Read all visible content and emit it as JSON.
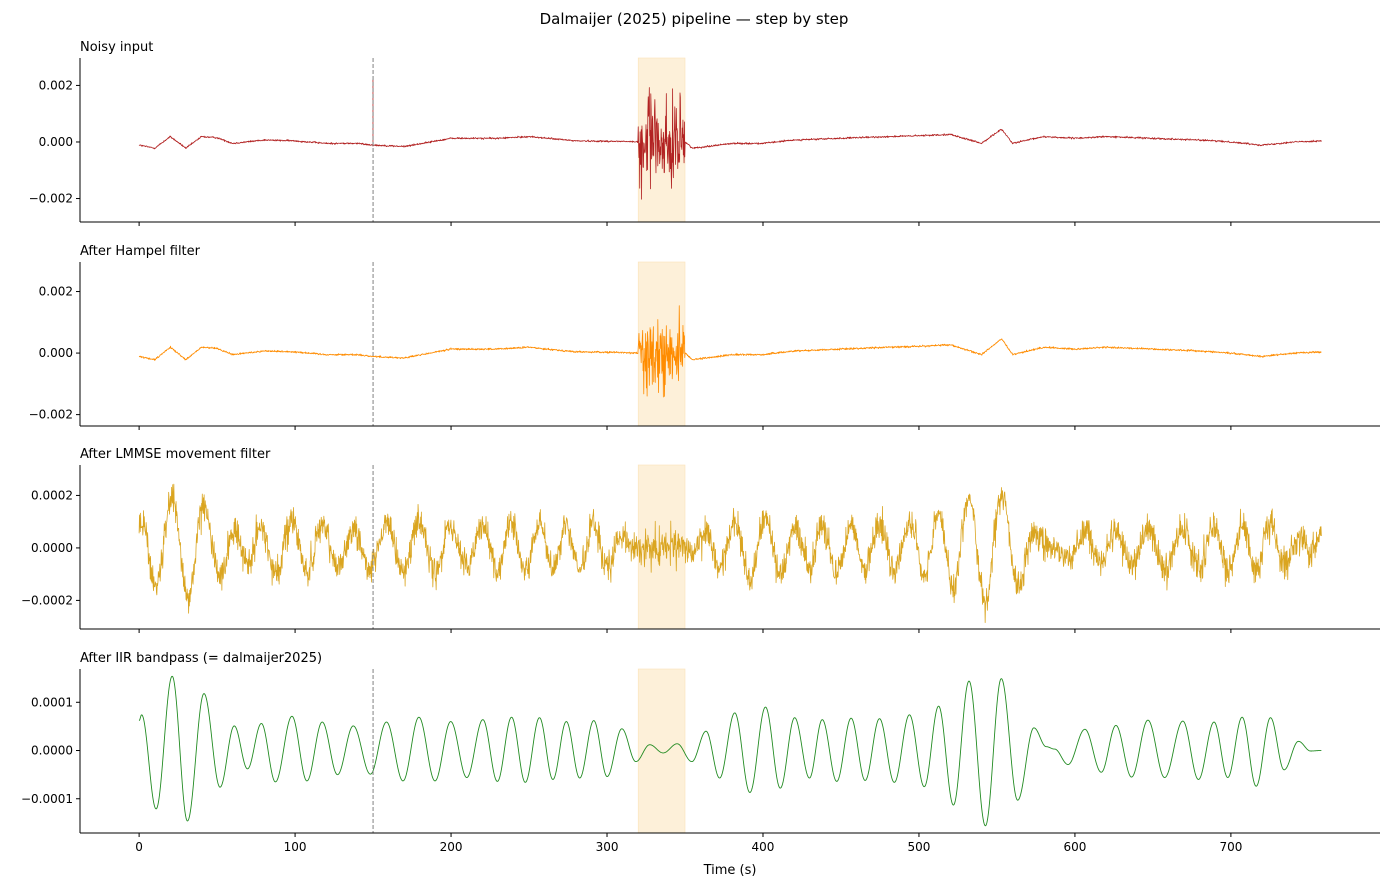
{
  "figure_title": "Dalmaijer (2025) pipeline — step by step",
  "chart_data": [
    {
      "type": "line",
      "title": "Noisy input",
      "color": "#b22222",
      "xlim": [
        -37.9,
        795.6
      ],
      "ylim": [
        -0.00283,
        0.00297
      ],
      "yticks": [
        0.002,
        0,
        -0.002
      ],
      "ytick_labels": [
        "0.002",
        "0.000",
        "−0.002"
      ],
      "xticks": [
        0,
        100,
        200,
        300,
        400,
        500,
        600,
        700
      ],
      "x_range": [
        0,
        758
      ],
      "baseline": {
        "x": [
          0,
          10,
          20,
          30,
          40,
          50,
          60,
          80,
          100,
          120,
          140,
          150,
          170,
          200,
          230,
          250,
          280,
          310,
          320,
          350,
          355,
          380,
          400,
          420,
          450,
          480,
          500,
          520,
          540,
          553,
          560,
          580,
          600,
          620,
          650,
          680,
          700,
          720,
          740,
          758
        ],
        "y": [
          -0.00011,
          -0.00022,
          0.00019,
          -0.00022,
          0.00019,
          0.00015,
          -5e-05,
          7e-05,
          4e-05,
          -5e-05,
          -5e-05,
          -0.00011,
          -0.00016,
          0.00013,
          0.00013,
          0.00019,
          4e-05,
          2e-05,
          0,
          0,
          -0.00022,
          -5e-05,
          -5e-05,
          7e-05,
          0.00013,
          0.00019,
          0.00022,
          0.00027,
          -5e-05,
          0.00046,
          -5e-05,
          0.00019,
          0.00013,
          0.00019,
          0.00013,
          7e-05,
          0,
          -0.00011,
          0,
          4e-05
        ]
      },
      "noise_amplitude": 3e-05,
      "burst": {
        "x_start": 320,
        "x_end": 350,
        "sigma": 0.0008,
        "max": 0.0027
      },
      "spike": {
        "x": 150,
        "y": 0.0022
      }
    },
    {
      "type": "line",
      "title": "After Hampel filter",
      "color": "#ff8c00",
      "xlim": [
        -37.9,
        795.6
      ],
      "ylim": [
        -0.00237,
        0.00296
      ],
      "yticks": [
        0.002,
        0,
        -0.002
      ],
      "ytick_labels": [
        "0.002",
        "0.000",
        "−0.002"
      ],
      "xticks": [
        0,
        100,
        200,
        300,
        400,
        500,
        600,
        700
      ],
      "x_range": [
        0,
        758
      ],
      "baseline": {
        "x": [
          0,
          10,
          20,
          30,
          40,
          50,
          60,
          80,
          100,
          120,
          140,
          150,
          170,
          200,
          230,
          250,
          280,
          310,
          320,
          350,
          355,
          380,
          400,
          420,
          450,
          480,
          500,
          520,
          540,
          553,
          560,
          580,
          600,
          620,
          650,
          680,
          700,
          720,
          740,
          758
        ],
        "y": [
          -0.00011,
          -0.00022,
          0.00019,
          -0.00022,
          0.00019,
          0.00015,
          -5e-05,
          7e-05,
          4e-05,
          -5e-05,
          -5e-05,
          -0.00011,
          -0.00016,
          0.00013,
          0.00013,
          0.00019,
          4e-05,
          2e-05,
          0,
          0,
          -0.00022,
          -5e-05,
          -5e-05,
          7e-05,
          0.00013,
          0.00019,
          0.00022,
          0.00027,
          -5e-05,
          0.00046,
          -5e-05,
          0.00019,
          0.00013,
          0.00019,
          0.00013,
          7e-05,
          0,
          -0.00011,
          0,
          4e-05
        ]
      },
      "noise_amplitude": 3e-05,
      "burst": {
        "x_start": 320,
        "x_end": 350,
        "sigma": 0.0006,
        "max": 0.0027
      }
    },
    {
      "type": "line",
      "title": "After LMMSE movement filter",
      "color": "#daa520",
      "xlim": [
        -37.9,
        795.6
      ],
      "ylim": [
        -0.000309,
        0.000316
      ],
      "yticks": [
        0.0002,
        0,
        -0.0002
      ],
      "ytick_labels": [
        "0.0002",
        "0.0000",
        "−0.0002"
      ],
      "xticks": [
        0,
        100,
        200,
        300,
        400,
        500,
        600,
        700
      ],
      "x_range": [
        0,
        758
      ],
      "trend": {
        "x": [
          0,
          1.6,
          10.9,
          21.2,
          31,
          41.6,
          51.9,
          61,
          69.5,
          78.4,
          87.4,
          98,
          107.6,
          117.4,
          127.2,
          137.3,
          148.3,
          158.6,
          169.2,
          179.4,
          189.7,
          199.8,
          210.1,
          220.4,
          229.7,
          238.8,
          247.6,
          256.7,
          265.3,
          273.9,
          282.5,
          291.5,
          300.1,
          309.5,
          318.5,
          327.4,
          336,
          345,
          354.4,
          363.5,
          372.2,
          381.9,
          391.6,
          401.6,
          411.1,
          420.3,
          429.8,
          438,
          447.3,
          456.5,
          465.5,
          474.7,
          484.2,
          493.9,
          503.4,
          512.6,
          522.1,
          532.1,
          542.6,
          552.8,
          563.3,
          573.7,
          581.6,
          587,
          595.6,
          606.4,
          616.9,
          626.3,
          636.3,
          646.8,
          657.5,
          669.2,
          679.2,
          689.2,
          698,
          707.2,
          716.2,
          725.4,
          734.1,
          743.3,
          751.1,
          757.8
        ],
        "y": [
          9e-05,
          0.0001,
          -0.00015,
          0.00021,
          -0.00019,
          0.00016,
          -0.00011,
          7e-05,
          -6e-05,
          8e-05,
          -9e-05,
          0.0001,
          -9e-05,
          8e-05,
          -7e-05,
          7e-05,
          -7e-05,
          8e-05,
          -9e-05,
          0.0001,
          -9e-05,
          8e-05,
          -8e-05,
          9e-05,
          -9e-05,
          0.0001,
          -9e-05,
          9e-05,
          -8e-05,
          8e-05,
          -8e-05,
          9e-05,
          -8e-05,
          6e-05,
          -1e-05,
          1e-05,
          0,
          1e-05,
          -2e-05,
          5e-05,
          -8e-05,
          0.0001,
          -0.00012,
          0.00012,
          -0.0001,
          9e-05,
          -8e-05,
          9e-05,
          -9e-05,
          9e-05,
          -8e-05,
          9e-05,
          -9e-05,
          0.0001,
          -0.0001,
          0.00013,
          -0.00015,
          0.00019,
          -0.00021,
          0.0002,
          -0.00014,
          6e-05,
          1e-05,
          0,
          -4e-05,
          6e-05,
          -6e-05,
          7e-05,
          -7e-05,
          8e-05,
          -8e-05,
          8e-05,
          -8e-05,
          8e-05,
          -8e-05,
          9e-05,
          -0.0001,
          9e-05,
          -6e-05,
          3e-05,
          0,
          5e-05
        ]
      },
      "noise_amplitude": 6e-05
    },
    {
      "type": "line",
      "title": "After IIR bandpass (= dalmaijer2025)",
      "color": "#228b22",
      "xlim": [
        -37.9,
        795.6
      ],
      "ylim": [
        -0.000171,
        0.000169
      ],
      "yticks": [
        0.0001,
        0,
        -0.0001
      ],
      "ytick_labels": [
        "0.0001",
        "0.0000",
        "−0.0001"
      ],
      "xticks": [
        0,
        100,
        200,
        300,
        400,
        500,
        600,
        700
      ],
      "xtick_labels": [
        "0",
        "100",
        "200",
        "300",
        "400",
        "500",
        "600",
        "700"
      ],
      "xlabel": "Time (s)",
      "x_range": [
        0,
        758
      ],
      "trend": {
        "x": [
          0,
          1.6,
          10.9,
          21.2,
          31,
          41.6,
          51.9,
          61,
          69.5,
          78.4,
          87.4,
          98,
          107.6,
          117.4,
          127.2,
          137.3,
          148.3,
          158.6,
          169.2,
          179.4,
          189.7,
          199.8,
          210.1,
          220.4,
          229.7,
          238.8,
          247.6,
          256.7,
          265.3,
          273.9,
          282.5,
          291.5,
          300.1,
          309.5,
          318.5,
          327.4,
          336,
          345,
          354.4,
          363.5,
          372.2,
          381.9,
          391.6,
          401.6,
          411.1,
          420.3,
          429.8,
          438,
          447.3,
          456.5,
          465.5,
          474.7,
          484.2,
          493.9,
          503.4,
          512.6,
          522.1,
          532.1,
          542.6,
          552.8,
          563.3,
          573.7,
          581.6,
          587,
          595.6,
          606.4,
          616.9,
          626.3,
          636.3,
          646.8,
          657.5,
          669.2,
          679.2,
          689.2,
          698,
          707.2,
          716.2,
          725.4,
          734.1,
          743.3,
          751.1,
          757.8
        ],
        "y": [
          6.2e-05,
          7.4e-05,
          -0.000121,
          0.000154,
          -0.000146,
          0.000118,
          -7.6e-05,
          5.1e-05,
          -3.8e-05,
          5.6e-05,
          -6.5e-05,
          7.1e-05,
          -6.3e-05,
          5.9e-05,
          -5e-05,
          5.1e-05,
          -4.9e-05,
          5.9e-05,
          -6.3e-05,
          6.9e-05,
          -6.3e-05,
          6e-05,
          -5.6e-05,
          6.4e-05,
          -6.4e-05,
          6.9e-05,
          -6.6e-05,
          6.8e-05,
          -6e-05,
          6e-05,
          -5.7e-05,
          6.2e-05,
          -5.4e-05,
          4.5e-05,
          -2.3e-05,
          1.2e-05,
          -5e-06,
          1.4e-05,
          -2.3e-05,
          4e-05,
          -5.7e-05,
          7.8e-05,
          -8.7e-05,
          9e-05,
          -7.8e-05,
          6.8e-05,
          -5.7e-05,
          6.4e-05,
          -6.4e-05,
          6.7e-05,
          -6.2e-05,
          6.6e-05,
          -6.6e-05,
          7.4e-05,
          -7.5e-05,
          9.2e-05,
          -0.000113,
          0.000144,
          -0.000156,
          0.000149,
          -0.000103,
          4.7e-05,
          8e-06,
          3e-06,
          -2.9e-05,
          4.4e-05,
          -4.5e-05,
          5.2e-05,
          -5.5e-05,
          6.3e-05,
          -5.6e-05,
          6.1e-05,
          -6e-05,
          5.9e-05,
          -5.6e-05,
          6.9e-05,
          -7.4e-05,
          6.8e-05,
          -4e-05,
          1.9e-05,
          -1e-06,
          0
        ]
      },
      "noise_amplitude": 0
    }
  ],
  "annotations": {
    "vertical_line": {
      "x": 150,
      "style": "dashed",
      "color": "#808080"
    },
    "shaded_span": {
      "x_start": 320,
      "x_end": 350,
      "color": "#fdf0d9"
    }
  }
}
